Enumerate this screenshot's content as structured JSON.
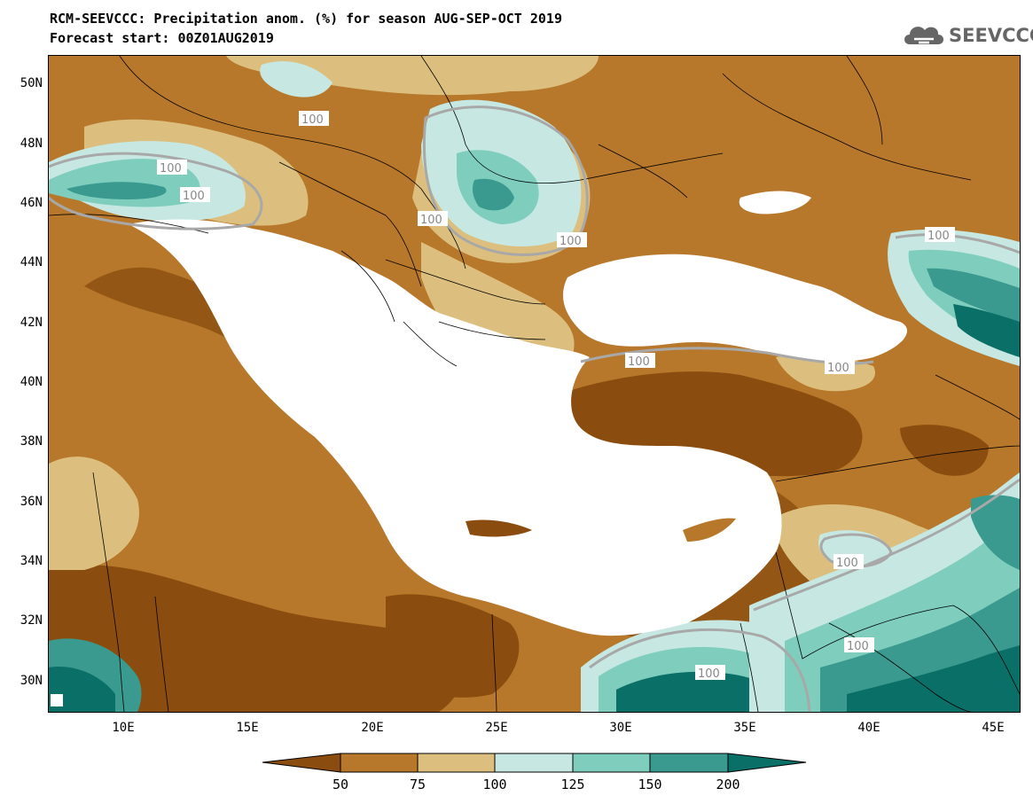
{
  "title": {
    "line1": "RCM-SEEVCCC: Precipitation anom. (%) for season AUG-SEP-OCT 2019",
    "line2": "Forecast start: 00Z01AUG2019"
  },
  "logo": {
    "text": "SEEVCCC",
    "icon": "cloud-logo-icon"
  },
  "map": {
    "lat_labels": [
      "50N",
      "48N",
      "46N",
      "44N",
      "42N",
      "40N",
      "38N",
      "36N",
      "34N",
      "32N",
      "30N"
    ],
    "lon_labels": [
      "10E",
      "15E",
      "20E",
      "25E",
      "30E",
      "35E",
      "40E",
      "45E"
    ],
    "lon_range": [
      7,
      46
    ],
    "lat_range": [
      29,
      51
    ],
    "contour_label": "100"
  },
  "colorbar": {
    "labels": [
      "50",
      "75",
      "100",
      "125",
      "150",
      "200"
    ],
    "colors": [
      "#8a4d0f",
      "#b8782b",
      "#dcbf7e",
      "#c7e8e2",
      "#7ecdbd",
      "#3a9a8f",
      "#0a6f66"
    ]
  },
  "palette": {
    "land_default": "#b8782b",
    "very_dry": "#8a4d0f",
    "dry_light": "#dcbf7e",
    "wet_light": "#c7e8e2",
    "wet_mid": "#7ecdbd",
    "wet_high": "#3a9a8f",
    "wet_max": "#0a6f66",
    "sea": "#ffffff"
  }
}
